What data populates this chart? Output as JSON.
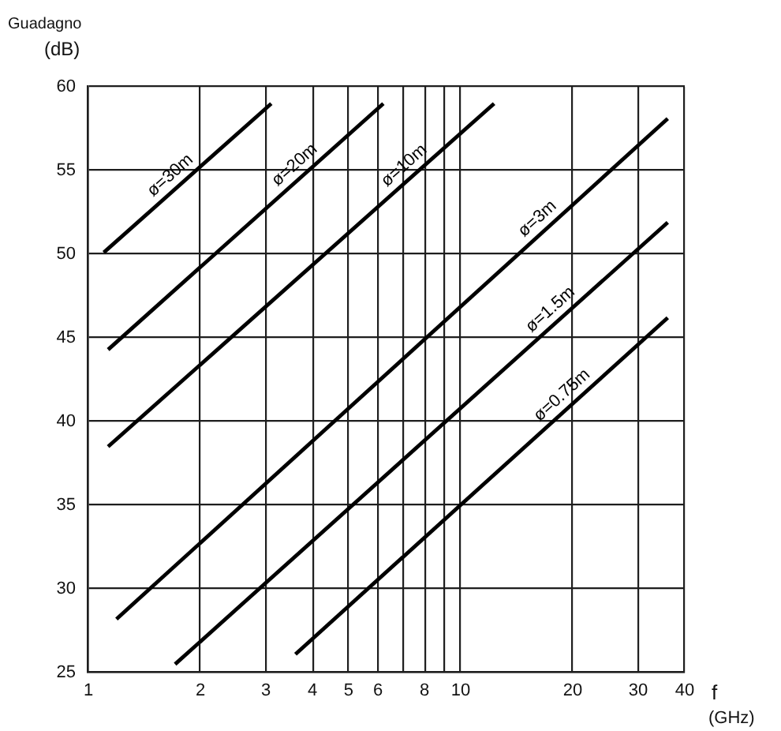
{
  "chart_data": {
    "type": "line",
    "xlabel": "f (GHz)",
    "ylabel": "Guadagno (dB)",
    "log": "x",
    "xlim": [
      1,
      40
    ],
    "xticks": [
      1,
      2,
      3,
      4,
      5,
      6,
      {
        "value": 7,
        "label": null
      },
      8,
      {
        "value": 9,
        "label": null
      },
      10,
      20,
      30,
      40
    ],
    "ylim": [
      25,
      60
    ],
    "yticks": [
      25,
      30,
      35,
      40,
      45,
      50,
      55,
      60
    ],
    "grid": true,
    "marker": "none",
    "line_style": "solid",
    "legend": false,
    "series": [
      {
        "name": "ø=30m",
        "color": "#000000",
        "x": [
          1.1,
          3.1
        ],
        "values": [
          50.1,
          59.0
        ]
      },
      {
        "name": "ø=20m",
        "color": "#000000",
        "x": [
          1.13,
          6.2
        ],
        "values": [
          44.3,
          59.0
        ]
      },
      {
        "name": "ø=10m",
        "color": "#000000",
        "x": [
          1.13,
          12.3
        ],
        "values": [
          38.5,
          59.0
        ]
      },
      {
        "name": "ø=3m",
        "color": "#000000",
        "x": [
          1.19,
          36
        ],
        "values": [
          28.2,
          58.1
        ]
      },
      {
        "name": "ø=1.5m",
        "color": "#000000",
        "x": [
          1.71,
          36
        ],
        "values": [
          25.5,
          51.9
        ]
      },
      {
        "name": "ø=0.75m",
        "color": "#000000",
        "x": [
          3.6,
          36
        ],
        "values": [
          26.1,
          46.2
        ]
      }
    ]
  }
}
